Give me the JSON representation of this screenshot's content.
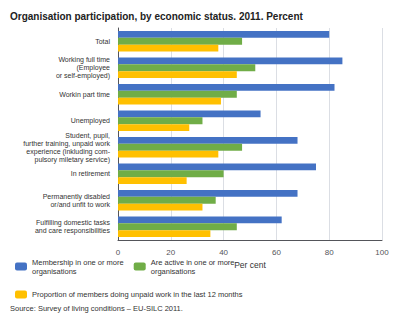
{
  "chart_data": {
    "type": "bar",
    "orientation": "horizontal",
    "title": "Organisation participation, by economic status. 2011. Percent",
    "xlabel": "Per cent",
    "annotations": [
      "Source: Survey of living conditions – EU-SILC 2011."
    ],
    "categories": [
      "Total",
      "Working full time\n(Employee\nor self-employed)",
      "Workin part time",
      "Unemployed",
      "Student, pupil,\nfurther training, unpaid work\nexperience (inkluding com-\npulsory miletary service)",
      "In retirement",
      "Permanently disabled\nor/and unfit to work",
      "Fulfilling domestic tasks\nand care responsibilities"
    ],
    "series": [
      {
        "name": "Membership in one or more\norganisations",
        "color": "#4472C4",
        "values": [
          80,
          85,
          82,
          54,
          68,
          75,
          68,
          62
        ]
      },
      {
        "name": "Are active in one or more\norganisations",
        "color": "#70AD47",
        "values": [
          47,
          52,
          45,
          32,
          47,
          40,
          37,
          45
        ]
      },
      {
        "name": "Proportion of members doing unpaid work in the last 12 months",
        "color": "#FFC000",
        "values": [
          38,
          45,
          39,
          27,
          38,
          26,
          32,
          35
        ]
      }
    ],
    "xlim": [
      0,
      100
    ],
    "xticks": [
      0,
      20,
      40,
      60,
      80,
      100
    ],
    "grid": true,
    "legend": "bottom"
  }
}
